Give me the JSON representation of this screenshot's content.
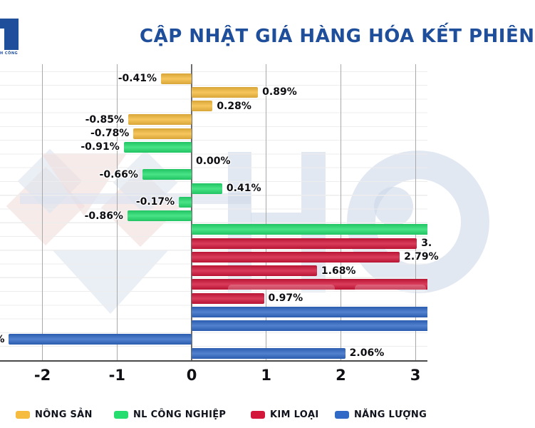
{
  "header": {
    "title": "CẬP NHẬT GIÁ HÀNG HÓA KẾT PHIÊN",
    "logo_caption": "H CÔNG"
  },
  "watermark": {
    "letters": "HG"
  },
  "colors": {
    "nong-san": "#F5BC3F",
    "nl-cong-nghiep": "#25DE6F",
    "kim-loai": "#D2173B",
    "nang-luong": "#3169C6",
    "title": "#1F4E9B",
    "watermark": "#CBD5E7"
  },
  "chart_data": {
    "type": "bar",
    "orientation": "horizontal",
    "title": "CẬP NHẬT GIÁ HÀNG HÓA KẾT PHIÊN",
    "xlabel": "",
    "ylabel": "",
    "xlim": [
      -2.6,
      3.2
    ],
    "grid": true,
    "x_ticks": [
      "-2",
      "-1",
      "0",
      "1",
      "2",
      "3"
    ],
    "x_tick_values": [
      -2,
      -1,
      0,
      1,
      2,
      3
    ],
    "bars": [
      {
        "series": "nong-san",
        "label": "-0.41%",
        "value": -0.41
      },
      {
        "series": "nong-san",
        "label": "0.89%",
        "value": 0.89
      },
      {
        "series": "nong-san",
        "label": "0.28%",
        "value": 0.28
      },
      {
        "series": "nong-san",
        "label": "-0.85%",
        "value": -0.85
      },
      {
        "series": "nong-san",
        "label": "-0.78%",
        "value": -0.78
      },
      {
        "series": "nl-cong-nghiep",
        "label": "-0.91%",
        "value": -0.91
      },
      {
        "series": "nl-cong-nghiep",
        "label": "0.00%",
        "value": 0.0
      },
      {
        "series": "nl-cong-nghiep",
        "label": "-0.66%",
        "value": -0.66
      },
      {
        "series": "nl-cong-nghiep",
        "label": "0.41%",
        "value": 0.41
      },
      {
        "series": "nl-cong-nghiep",
        "label": "-0.17%",
        "value": -0.17
      },
      {
        "series": "nl-cong-nghiep",
        "label": "-0.86%",
        "value": -0.86
      },
      {
        "series": "nl-cong-nghiep",
        "label": "",
        "value": 3.3,
        "clipped": "right"
      },
      {
        "series": "kim-loai",
        "label": "3.",
        "value": 3.02
      },
      {
        "series": "kim-loai",
        "label": "2.79%",
        "value": 2.79
      },
      {
        "series": "kim-loai",
        "label": "1.68%",
        "value": 1.68
      },
      {
        "series": "kim-loai",
        "label": "",
        "value": 3.3,
        "clipped": "right"
      },
      {
        "series": "kim-loai",
        "label": "0.97%",
        "value": 0.97
      },
      {
        "series": "nang-luong",
        "label": "",
        "value": 3.3,
        "clipped": "right"
      },
      {
        "series": "nang-luong",
        "label": "",
        "value": 3.3,
        "clipped": "right"
      },
      {
        "series": "nang-luong",
        "label": "%",
        "value": -2.45
      },
      {
        "series": "nang-luong",
        "label": "2.06%",
        "value": 2.06
      }
    ],
    "legend": [
      {
        "label": "NÔNG SẢN",
        "series": "nong-san"
      },
      {
        "label": "NL CÔNG NGHIỆP",
        "series": "nl-cong-nghiep"
      },
      {
        "label": "KIM LOẠI",
        "series": "kim-loai"
      },
      {
        "label": "NĂNG LƯỢNG",
        "series": "nang-luong"
      }
    ],
    "legend_position": "bottom"
  }
}
